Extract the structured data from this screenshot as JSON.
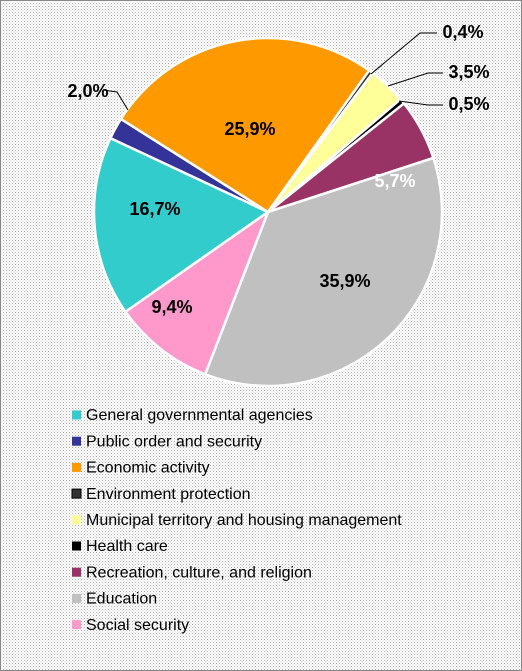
{
  "chart_data": {
    "type": "pie",
    "categories": [
      "General governmental agencies",
      "Public order and security",
      "Economic activity",
      "Environment protection",
      "Municipal territory and housing management",
      "Health care",
      "Recreation, culture, and religion",
      "Education",
      "Social security"
    ],
    "values": [
      16.7,
      2.0,
      25.9,
      0.4,
      3.5,
      0.5,
      5.7,
      35.9,
      9.4
    ],
    "value_labels": [
      "16,7%",
      "2,0%",
      "25,9%",
      "0,4%",
      "3,5%",
      "0,5%",
      "5,7%",
      "35,9%",
      "9,4%"
    ],
    "colors": [
      "#33cccc",
      "#333399",
      "#ff9900",
      "#333333",
      "#ffff99",
      "#000000",
      "#993366",
      "#c0c0c0",
      "#ff99cc"
    ]
  }
}
